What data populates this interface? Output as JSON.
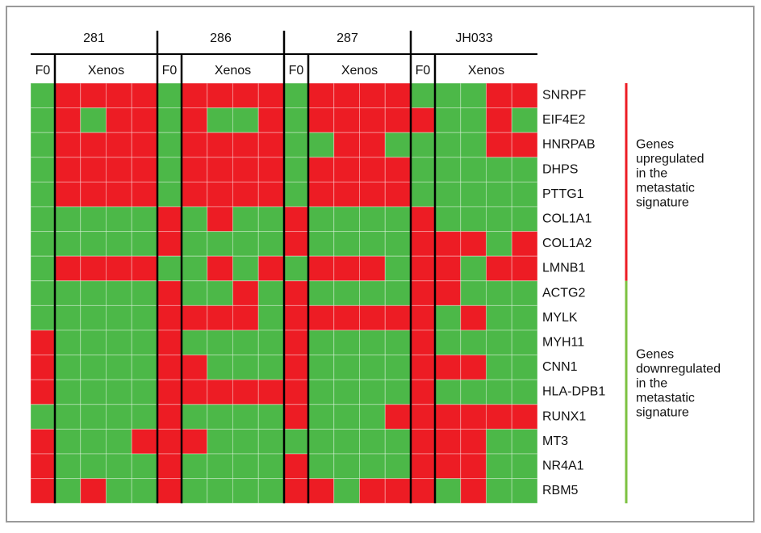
{
  "chart_data": {
    "type": "heatmap",
    "groups": [
      {
        "name": "281",
        "columns": [
          "F0",
          "Xenos"
        ]
      },
      {
        "name": "286",
        "columns": [
          "F0",
          "Xenos"
        ]
      },
      {
        "name": "287",
        "columns": [
          "F0",
          "Xenos"
        ]
      },
      {
        "name": "JH033",
        "columns": [
          "F0",
          "Xenos"
        ]
      }
    ],
    "rows": [
      "SNRPF",
      "EIF4E2",
      "HNRPAB",
      "DHPS",
      "PTTG1",
      "COL1A1",
      "COL1A2",
      "LMNB1",
      "ACTG2",
      "MYLK",
      "MYH11",
      "CNN1",
      "HLA-DPB1",
      "RUNX1",
      "MT3",
      "NR4A1",
      "RBM5"
    ],
    "values": [
      [
        0,
        1,
        1,
        1,
        1,
        0,
        1,
        1,
        1,
        1,
        0,
        1,
        1,
        1,
        1,
        0,
        0,
        0,
        1,
        1
      ],
      [
        0,
        1,
        0,
        1,
        1,
        0,
        1,
        0,
        0,
        1,
        0,
        1,
        1,
        1,
        1,
        1,
        0,
        0,
        1,
        0
      ],
      [
        0,
        1,
        1,
        1,
        1,
        0,
        1,
        1,
        1,
        1,
        0,
        0,
        1,
        1,
        0,
        0,
        0,
        0,
        1,
        1
      ],
      [
        0,
        1,
        1,
        1,
        1,
        0,
        1,
        1,
        1,
        1,
        0,
        1,
        1,
        1,
        1,
        0,
        0,
        0,
        0,
        0
      ],
      [
        0,
        1,
        1,
        1,
        1,
        0,
        1,
        1,
        1,
        1,
        0,
        1,
        1,
        1,
        1,
        0,
        0,
        0,
        0,
        0
      ],
      [
        0,
        0,
        0,
        0,
        0,
        1,
        0,
        1,
        0,
        0,
        1,
        0,
        0,
        0,
        0,
        1,
        0,
        0,
        0,
        0
      ],
      [
        0,
        0,
        0,
        0,
        0,
        1,
        0,
        0,
        0,
        0,
        1,
        0,
        0,
        0,
        0,
        1,
        1,
        1,
        0,
        1
      ],
      [
        0,
        1,
        1,
        1,
        1,
        0,
        0,
        1,
        0,
        1,
        0,
        1,
        1,
        1,
        0,
        1,
        1,
        0,
        1,
        1
      ],
      [
        0,
        0,
        0,
        0,
        0,
        1,
        0,
        0,
        1,
        0,
        1,
        0,
        0,
        0,
        0,
        1,
        1,
        0,
        0,
        0
      ],
      [
        0,
        0,
        0,
        0,
        0,
        1,
        1,
        1,
        1,
        0,
        1,
        1,
        1,
        1,
        1,
        1,
        0,
        1,
        0,
        0
      ],
      [
        1,
        0,
        0,
        0,
        0,
        1,
        0,
        0,
        0,
        0,
        1,
        0,
        0,
        0,
        0,
        1,
        0,
        0,
        0,
        0
      ],
      [
        1,
        0,
        0,
        0,
        0,
        1,
        1,
        0,
        0,
        0,
        1,
        0,
        0,
        0,
        0,
        1,
        1,
        1,
        0,
        0
      ],
      [
        1,
        0,
        0,
        0,
        0,
        1,
        1,
        1,
        1,
        1,
        1,
        0,
        0,
        0,
        0,
        1,
        0,
        0,
        0,
        0
      ],
      [
        0,
        0,
        0,
        0,
        0,
        1,
        0,
        0,
        0,
        0,
        1,
        0,
        0,
        0,
        1,
        1,
        1,
        1,
        1,
        1
      ],
      [
        1,
        0,
        0,
        0,
        1,
        1,
        1,
        0,
        0,
        0,
        0,
        0,
        0,
        0,
        0,
        1,
        1,
        1,
        0,
        0
      ],
      [
        1,
        0,
        0,
        0,
        0,
        1,
        0,
        0,
        0,
        0,
        1,
        0,
        0,
        0,
        0,
        1,
        1,
        1,
        0,
        0
      ],
      [
        1,
        0,
        1,
        0,
        0,
        1,
        0,
        0,
        0,
        0,
        1,
        1,
        0,
        1,
        1,
        1,
        0,
        1,
        0,
        0
      ]
    ],
    "colors": [
      "#4cb848",
      "#ed1c24"
    ],
    "annotations": [
      {
        "lines": [
          "Genes",
          "upregulated",
          "in the",
          "metastatic",
          "signature"
        ],
        "color": "#ed1c24"
      },
      {
        "lines": [
          "Genes",
          "downregulated",
          "in the",
          "metastatic",
          "signature"
        ],
        "color": "#7dc242"
      }
    ]
  }
}
